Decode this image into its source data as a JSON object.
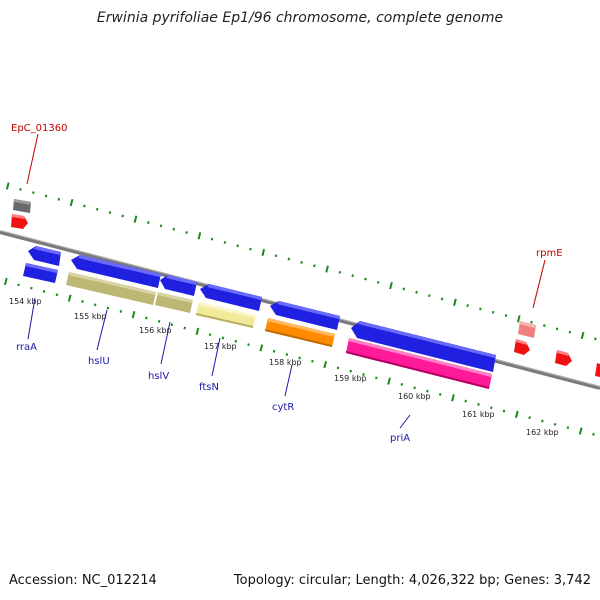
{
  "title": "Erwinia pyrifoliae Ep1/96 chromosome, complete genome",
  "footer": {
    "accession": "Accession: NC_012214",
    "summary": "Topology: circular; Length: 4,026,322 bp; Genes: 3,742"
  },
  "colors": {
    "backbone": "#888888",
    "tick": "#1a8a1a",
    "gene_label": "#1a1aa6",
    "gene_label_alt": "#c00000",
    "cds": "#2020e0",
    "product_olive": "#bdb774",
    "product_yellow": "#f2ea9a",
    "product_orange": "#ff8c00",
    "product_magenta": "#ff1a9a",
    "red_marker": "#ee1111",
    "pink_marker": "#f08080",
    "grey_marker": "#6a6a6a"
  },
  "kbp_labels": [
    "154 kbp",
    "155 kbp",
    "156 kbp",
    "157 kbp",
    "158 kbp",
    "159 kbp",
    "160 kbp",
    "161 kbp",
    "162 kbp"
  ],
  "genes": [
    {
      "name": "rraA"
    },
    {
      "name": "hslU"
    },
    {
      "name": "hslV"
    },
    {
      "name": "ftsN"
    },
    {
      "name": "cytR"
    },
    {
      "name": "priA"
    },
    {
      "name": "EpC_01360"
    },
    {
      "name": "rpmE"
    }
  ]
}
